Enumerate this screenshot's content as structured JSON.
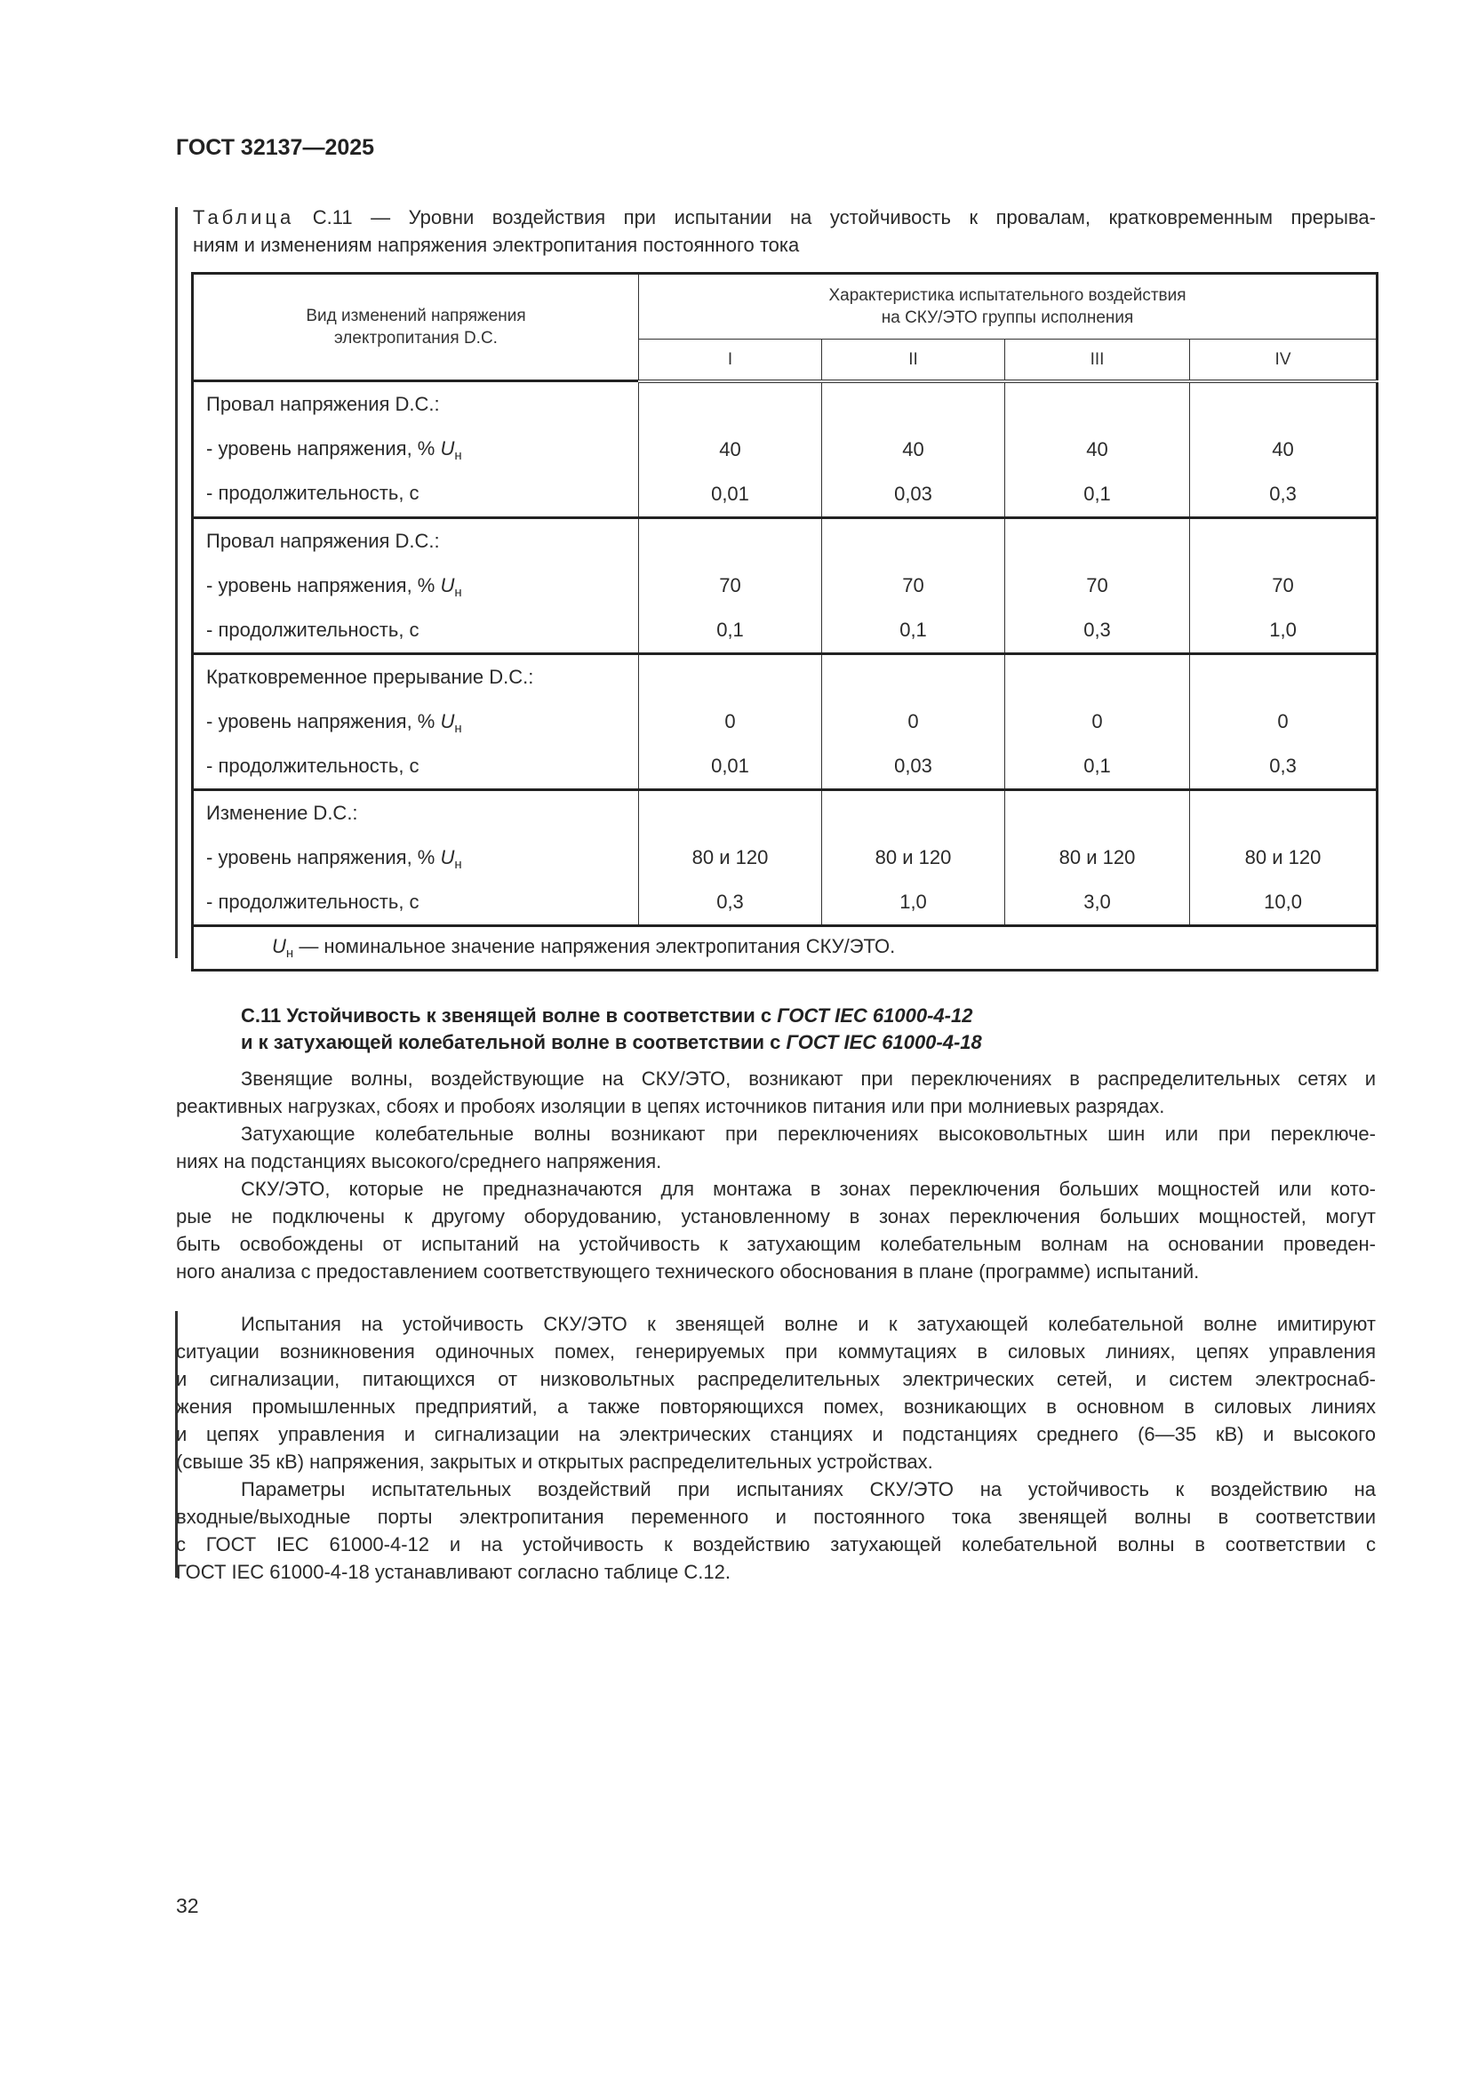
{
  "header": {
    "doc_code": "ГОСТ 32137—2025"
  },
  "table": {
    "caption_label": "Таблица",
    "caption_lines": [
      "С.11 — Уровни воздействия при испытании на устойчивость к провалам, кратковременным прерыва-",
      "ниям и изменениям напряжения электропитания постоянного тока"
    ],
    "head": {
      "col1_lines": [
        "Вид изменений напряжения",
        "электропитания D.C."
      ],
      "group_lines": [
        "Характеристика испытательного воздействия",
        "на СКУ/ЭТО группы исполнения"
      ],
      "groups": [
        "I",
        "II",
        "III",
        "IV"
      ]
    },
    "level_label": "- уровень напряжения, %",
    "duration_label": "- продолжительность, с",
    "unit_symbol": "U",
    "unit_subscript": "н",
    "rows": [
      {
        "title": "Провал напряжения D.C.:",
        "level": [
          "40",
          "40",
          "40",
          "40"
        ],
        "duration": [
          "0,01",
          "0,03",
          "0,1",
          "0,3"
        ]
      },
      {
        "title": "Провал напряжения D.C.:",
        "level": [
          "70",
          "70",
          "70",
          "70"
        ],
        "duration": [
          "0,1",
          "0,1",
          "0,3",
          "1,0"
        ]
      },
      {
        "title": "Кратковременное прерывание D.C.:",
        "level": [
          "0",
          "0",
          "0",
          "0"
        ],
        "duration": [
          "0,01",
          "0,03",
          "0,1",
          "0,3"
        ]
      },
      {
        "title": "Изменение D.C.:",
        "level": [
          "80 и 120",
          "80 и 120",
          "80 и 120",
          "80 и 120"
        ],
        "duration": [
          "0,3",
          "1,0",
          "3,0",
          "10,0"
        ]
      }
    ],
    "footnote": "— номинальное значение напряжения электропитания СКУ/ЭТО."
  },
  "section": {
    "heading_line1": "С.11 Устойчивость к звенящей волне в соответствии с ",
    "heading_line1_ref": "ГОСТ IEC 61000-4-12",
    "heading_line2": "и к затухающей колебательной волне в соответствии с ",
    "heading_line2_ref": "ГОСТ IEC 61000-4-18",
    "paragraphs1": [
      [
        "Звенящие волны, воздействующие на СКУ/ЭТО, возникают при переключениях в распределительных сетях и",
        "реактивных нагрузках, сбоях и пробоях изоляции в цепях источников питания или при молниевых разрядах."
      ],
      [
        "Затухающие колебательные волны возникают при переключениях высоковольтных шин или при переключе-",
        "ниях на подстанциях высокого/среднего напряжения."
      ],
      [
        "СКУ/ЭТО, которые не предназначаются для монтажа в зонах переключения больших мощностей или кото-",
        "рые не подключены к другому оборудованию, установленному в зонах переключения больших мощностей, могут",
        "быть освобождены от испытаний на устойчивость к затухающим колебательным волнам на основании проведен-",
        "ного анализа с предоставлением соответствующего технического обоснования в плане (программе) испытаний."
      ]
    ],
    "paragraphs2": [
      [
        "Испытания на устойчивость СКУ/ЭТО к звенящей волне и к затухающей колебательной волне имитируют",
        "ситуации возникновения одиночных помех, генерируемых при коммутациях в силовых линиях, цепях управления",
        "и сигнализации, питающихся от низковольтных распределительных электрических сетей, и систем электроснаб-",
        "жения промышленных предприятий, а также повторяющихся помех, возникающих в основном в силовых линиях",
        "и цепях управления и сигнализации на электрических станциях и подстанциях среднего (6—35 кВ) и высокого",
        "(свыше 35 кВ) напряжения, закрытых и открытых распределительных устройствах."
      ],
      [
        "Параметры испытательных воздействий при испытаниях СКУ/ЭТО на устойчивость к воздействию на",
        "входные/выходные порты электропитания переменного и постоянного тока звенящей волны в соответствии",
        "с ГОСТ IEC 61000-4-12 и на устойчивость к воздействию затухающей колебательной волны в соответствии с",
        "ГОСТ IEC 61000-4-18 устанавливают согласно таблице С.12."
      ]
    ]
  },
  "footer": {
    "page_number": "32"
  }
}
